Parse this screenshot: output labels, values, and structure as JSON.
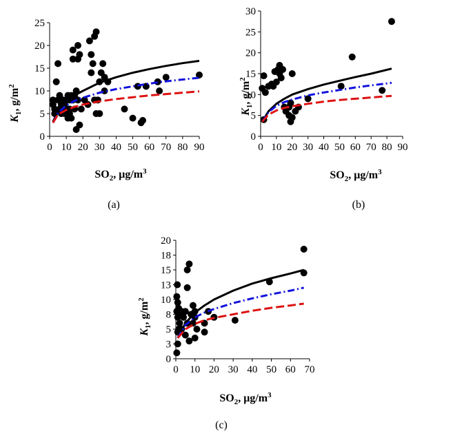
{
  "chart_data": [
    {
      "panel": "a",
      "type": "scatter",
      "caption": "(a)",
      "xlabel": {
        "main": "SO",
        "sub": "2",
        "unit": ", μg/m",
        "sup": "3"
      },
      "ylabel": {
        "var": "K",
        "sub": "1",
        "unit": ", g/m",
        "sup": "2"
      },
      "xlim": [
        0,
        90
      ],
      "ylim": [
        0,
        25
      ],
      "xticks": [
        0,
        10,
        20,
        30,
        40,
        50,
        60,
        70,
        80,
        90
      ],
      "yticks": [
        0,
        5,
        10,
        15,
        20,
        25
      ],
      "points": [
        [
          2,
          7
        ],
        [
          2,
          8
        ],
        [
          3,
          6
        ],
        [
          3,
          5
        ],
        [
          4,
          12
        ],
        [
          5,
          16
        ],
        [
          5,
          8
        ],
        [
          6,
          9
        ],
        [
          6,
          6
        ],
        [
          7,
          7
        ],
        [
          7,
          5
        ],
        [
          8,
          8
        ],
        [
          8,
          6
        ],
        [
          9,
          7
        ],
        [
          9,
          5
        ],
        [
          10,
          8
        ],
        [
          10,
          6
        ],
        [
          10,
          5
        ],
        [
          11,
          4
        ],
        [
          11,
          9
        ],
        [
          12,
          8
        ],
        [
          12,
          6
        ],
        [
          12,
          5
        ],
        [
          13,
          9
        ],
        [
          13,
          4
        ],
        [
          14,
          19
        ],
        [
          14,
          17
        ],
        [
          14,
          8
        ],
        [
          15,
          9
        ],
        [
          15,
          6
        ],
        [
          16,
          10
        ],
        [
          16,
          1.5
        ],
        [
          17,
          20
        ],
        [
          17,
          17
        ],
        [
          17,
          8
        ],
        [
          18,
          18
        ],
        [
          18,
          2.5
        ],
        [
          19,
          6
        ],
        [
          21,
          8
        ],
        [
          23,
          7
        ],
        [
          24,
          21
        ],
        [
          25,
          18
        ],
        [
          25,
          14
        ],
        [
          26,
          16
        ],
        [
          27,
          22
        ],
        [
          27,
          8
        ],
        [
          28,
          23
        ],
        [
          28,
          5
        ],
        [
          29,
          8
        ],
        [
          30,
          5
        ],
        [
          30,
          12
        ],
        [
          31,
          14
        ],
        [
          32,
          16
        ],
        [
          33,
          10
        ],
        [
          33,
          13
        ],
        [
          35,
          12
        ],
        [
          45,
          6
        ],
        [
          50,
          4
        ],
        [
          53,
          11
        ],
        [
          55,
          3
        ],
        [
          56,
          3.5
        ],
        [
          58,
          11
        ],
        [
          65,
          12
        ],
        [
          66,
          10
        ],
        [
          70,
          13
        ],
        [
          90,
          13.5
        ]
      ],
      "series": [
        {
          "name": "black solid",
          "style": "solid",
          "color": "#000000",
          "x": [
            2,
            5,
            10,
            15,
            20,
            30,
            40,
            50,
            60,
            70,
            80,
            90
          ],
          "y": [
            3.2,
            5.5,
            7.5,
            9,
            10,
            11.8,
            13,
            14,
            14.8,
            15.5,
            16.1,
            16.6
          ]
        },
        {
          "name": "blue dash-dot",
          "style": "dashdot",
          "color": "#1111dd",
          "x": [
            2,
            5,
            10,
            15,
            20,
            30,
            40,
            50,
            60,
            70,
            80,
            90
          ],
          "y": [
            3.0,
            5.2,
            6.8,
            7.8,
            8.5,
            9.6,
            10.4,
            11.0,
            11.6,
            12.1,
            12.5,
            12.9
          ]
        },
        {
          "name": "red dashed",
          "style": "dashed",
          "color": "#dd1111",
          "x": [
            2,
            5,
            10,
            15,
            20,
            30,
            40,
            50,
            60,
            70,
            80,
            90
          ],
          "y": [
            3.0,
            4.8,
            5.8,
            6.5,
            7.0,
            7.7,
            8.2,
            8.6,
            9.0,
            9.3,
            9.6,
            9.9
          ]
        }
      ]
    },
    {
      "panel": "b",
      "type": "scatter",
      "caption": "(b)",
      "xlabel": {
        "main": "SO",
        "sub": "2",
        "unit": ", μg/m",
        "sup": "3"
      },
      "ylabel": {
        "var": "K",
        "sub": "1",
        "unit": ", g/m",
        "sup": "2"
      },
      "xlim": [
        0,
        90
      ],
      "ylim": [
        0,
        30
      ],
      "xticks": [
        0,
        10,
        20,
        30,
        40,
        50,
        60,
        70,
        80,
        90
      ],
      "yticks": [
        0,
        5,
        10,
        15,
        20,
        25,
        30
      ],
      "points": [
        [
          1,
          11.5
        ],
        [
          2,
          14.5
        ],
        [
          2,
          4
        ],
        [
          3,
          10.5
        ],
        [
          5,
          12
        ],
        [
          7,
          12.5
        ],
        [
          8,
          12
        ],
        [
          9,
          15.5
        ],
        [
          10,
          13
        ],
        [
          11,
          16
        ],
        [
          12,
          15
        ],
        [
          12,
          17
        ],
        [
          13,
          14
        ],
        [
          14,
          16
        ],
        [
          15,
          7
        ],
        [
          16,
          6
        ],
        [
          18,
          5
        ],
        [
          18,
          7
        ],
        [
          19,
          3.5
        ],
        [
          19,
          8
        ],
        [
          20,
          15
        ],
        [
          20,
          4.5
        ],
        [
          22,
          6
        ],
        [
          24,
          7
        ],
        [
          30,
          9
        ],
        [
          51,
          12
        ],
        [
          58,
          19
        ],
        [
          77,
          11
        ],
        [
          83,
          27.5
        ]
      ],
      "series": [
        {
          "name": "black solid",
          "style": "solid",
          "color": "#000000",
          "x": [
            1,
            5,
            10,
            15,
            20,
            30,
            40,
            50,
            60,
            70,
            83
          ],
          "y": [
            3.5,
            6,
            7.8,
            9,
            10,
            11.3,
            12.4,
            13.3,
            14.2,
            15,
            16.2
          ]
        },
        {
          "name": "blue dash-dot",
          "style": "dashdot",
          "color": "#1111dd",
          "x": [
            1,
            5,
            10,
            15,
            20,
            30,
            40,
            50,
            60,
            70,
            83
          ],
          "y": [
            3.5,
            5.8,
            7.3,
            8.2,
            8.8,
            9.8,
            10.5,
            11.1,
            11.7,
            12.2,
            12.8
          ]
        },
        {
          "name": "red dashed",
          "style": "dashed",
          "color": "#dd1111",
          "x": [
            1,
            5,
            10,
            15,
            20,
            30,
            40,
            50,
            60,
            70,
            83
          ],
          "y": [
            3.5,
            5.2,
            6.2,
            6.8,
            7.2,
            7.8,
            8.3,
            8.7,
            9.0,
            9.3,
            9.7
          ]
        }
      ]
    },
    {
      "panel": "c",
      "type": "scatter",
      "caption": "(c)",
      "xlabel": {
        "main": "SO",
        "sub": "2",
        "unit": ", μg/m",
        "sup": "3"
      },
      "ylabel": {
        "var": "K",
        "sub": "1",
        "unit": ", g/m",
        "sup": "2"
      },
      "xlim": [
        0,
        70
      ],
      "ylim": [
        0,
        20
      ],
      "xticks": [
        0,
        10,
        20,
        30,
        40,
        50,
        60,
        70
      ],
      "yticks": [
        0,
        3,
        5,
        8,
        10,
        13,
        15,
        18,
        20
      ],
      "ytick_values": [
        0,
        2.5,
        5,
        7.5,
        10,
        12.5,
        15,
        17.5,
        20
      ],
      "points": [
        [
          0.5,
          10.5
        ],
        [
          0.5,
          8
        ],
        [
          0.5,
          1
        ],
        [
          0.8,
          12.5
        ],
        [
          1,
          9.5
        ],
        [
          1,
          7
        ],
        [
          1,
          4.5
        ],
        [
          1,
          2.5
        ],
        [
          1.5,
          8.5
        ],
        [
          1.5,
          5
        ],
        [
          2,
          7.5
        ],
        [
          2,
          6
        ],
        [
          3,
          8
        ],
        [
          3,
          5
        ],
        [
          4,
          7
        ],
        [
          5,
          8
        ],
        [
          5,
          4
        ],
        [
          6,
          15
        ],
        [
          6,
          12
        ],
        [
          6,
          6
        ],
        [
          7,
          16
        ],
        [
          7,
          3
        ],
        [
          8,
          7.5
        ],
        [
          9,
          9
        ],
        [
          9,
          6
        ],
        [
          10,
          8
        ],
        [
          10,
          7
        ],
        [
          10,
          3.5
        ],
        [
          11,
          5
        ],
        [
          15,
          6
        ],
        [
          15,
          4.5
        ],
        [
          17,
          8
        ],
        [
          20,
          7
        ],
        [
          31,
          6.5
        ],
        [
          49,
          13
        ],
        [
          67,
          18.5
        ],
        [
          67,
          14.5
        ]
      ],
      "series": [
        {
          "name": "black solid",
          "style": "solid",
          "color": "#000000",
          "x": [
            1,
            5,
            10,
            15,
            20,
            30,
            40,
            50,
            60,
            67
          ],
          "y": [
            3.5,
            6,
            7.8,
            9,
            10,
            11.5,
            12.7,
            13.6,
            14.4,
            15
          ]
        },
        {
          "name": "blue dash-dot",
          "style": "dashdot",
          "color": "#1111dd",
          "x": [
            1,
            5,
            10,
            15,
            20,
            30,
            40,
            50,
            60,
            67
          ],
          "y": [
            3.5,
            5.7,
            7,
            7.8,
            8.4,
            9.4,
            10.2,
            10.9,
            11.5,
            12
          ]
        },
        {
          "name": "red dashed",
          "style": "dashed",
          "color": "#dd1111",
          "x": [
            1,
            5,
            10,
            15,
            20,
            30,
            40,
            50,
            60,
            67
          ],
          "y": [
            3.5,
            5,
            5.9,
            6.5,
            6.9,
            7.5,
            8.1,
            8.6,
            9,
            9.3
          ]
        }
      ]
    }
  ]
}
